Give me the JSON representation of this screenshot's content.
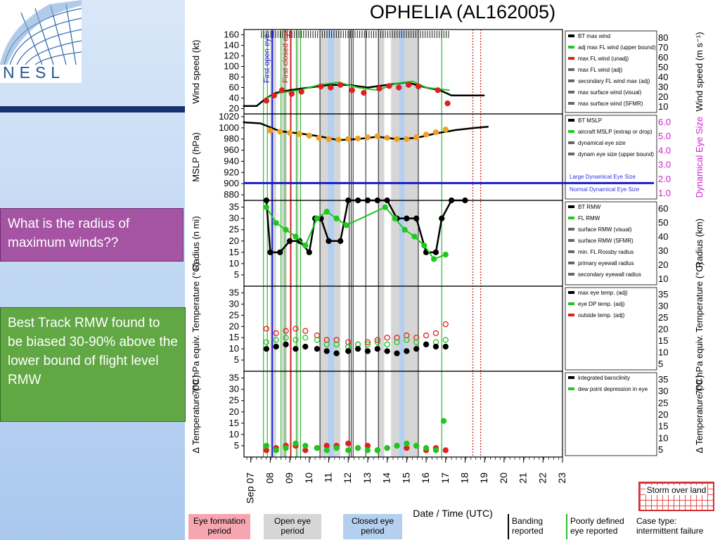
{
  "logo": {
    "text": "NESL"
  },
  "callouts": {
    "question": "What is the radius of maximum winds??",
    "answer": "Best Track RMW found to be biased 30-90% above the lower bound of flight level RMW"
  },
  "chart_data": {
    "type": "scatter",
    "title": "OPHELIA (AL162005)",
    "xlabel": "Date / Time (UTC)",
    "x_ticks": [
      "Sep 07",
      "08",
      "09",
      "10",
      "11",
      "12",
      "13",
      "14",
      "15",
      "16",
      "17",
      "18",
      "19",
      "20",
      "21",
      "22",
      "23"
    ],
    "xlim": [
      "Sep 07",
      "Sep 23"
    ],
    "panels": [
      {
        "name": "wind",
        "ylabel": "Wind speed (kt)",
        "ylabel_right": "Wind speed (m s⁻¹)",
        "ylim": [
          10,
          170
        ],
        "yticks": [
          "160",
          "140",
          "120",
          "100",
          "80",
          "60",
          "40",
          "20"
        ],
        "yticks_right": [
          "80",
          "70",
          "60",
          "50",
          "40",
          "30",
          "20",
          "10"
        ],
        "legend": [
          "BT max wind",
          "adj max FL wind (upper bound)",
          "max FL wind (unadj)",
          "max FL wind (adj)",
          "secondary FL wind max (adj)",
          "max surface wind (visual)",
          "max surface wind (SFMR)"
        ],
        "series": [
          {
            "name": "BT max wind",
            "x": [
              6.6,
              7.3,
              7.8,
              8.3,
              9,
              10,
              11,
              12,
              13,
              14,
              15,
              16,
              16.7,
              17.3,
              18,
              19
            ],
            "y": [
              25,
              25,
              40,
              50,
              55,
              60,
              65,
              65,
              60,
              65,
              70,
              60,
              55,
              45,
              45,
              45
            ]
          },
          {
            "name": "adj max FL wind (upper bound)",
            "x": [
              7.8,
              8.5,
              9.5,
              10.5,
              11.5,
              12.5,
              13.5,
              14.5,
              15.3,
              16,
              17.2
            ],
            "y": [
              40,
              50,
              55,
              65,
              70,
              60,
              55,
              68,
              72,
              60,
              55
            ]
          },
          {
            "name": "max FL wind (adj)",
            "x": [
              7.8,
              8.2,
              8.6,
              9.1,
              9.6,
              10.6,
              11.1,
              11.6,
              12.2,
              12.8,
              13.6,
              14.1,
              14.6,
              15.1,
              15.6,
              16.6,
              17.1
            ],
            "y": [
              35,
              45,
              55,
              48,
              52,
              62,
              60,
              65,
              55,
              50,
              58,
              63,
              60,
              65,
              62,
              55,
              30
            ]
          }
        ]
      },
      {
        "name": "mslp",
        "ylabel": "MSLP (hPa)",
        "ylabel_right": "Dynamical Eye Size",
        "ylim": [
          870,
          1025
        ],
        "yticks": [
          "1020",
          "1000",
          "980",
          "960",
          "940",
          "920",
          "900",
          "880"
        ],
        "yticks_right": [
          "6.0",
          "5.0",
          "4.0",
          "3.0",
          "2.0",
          "1.0"
        ],
        "legend": [
          "BT MSLP",
          "aircraft MSLP (extrap or drop)",
          "dynamical eye size",
          "dynam eye size (upper bound)"
        ],
        "annotations": [
          "Large Dynamical Eye Size",
          "Normal Dynamical Eye Size"
        ],
        "series": [
          {
            "name": "BT MSLP",
            "x": [
              6.6,
              7.5,
              8.5,
              9.5,
              10.5,
              11.5,
              12.5,
              13.5,
              14.5,
              15.5,
              16.5,
              17.5,
              18.5,
              19.2
            ],
            "y": [
              1010,
              1008,
              994,
              990,
              985,
              978,
              980,
              984,
              980,
              982,
              990,
              996,
              1000,
              1002
            ]
          },
          {
            "name": "aircraft MSLP (extrap or drop)",
            "x": [
              8,
              8.5,
              9,
              9.5,
              10,
              10.5,
              11,
              11.5,
              12,
              12.5,
              13,
              13.5,
              14,
              14.5,
              15,
              15.5,
              16,
              16.5,
              17
            ],
            "y": [
              995,
              993,
              991,
              989,
              986,
              982,
              980,
              979,
              980,
              981,
              983,
              985,
              982,
              980,
              980,
              983,
              988,
              992,
              997
            ]
          }
        ]
      },
      {
        "name": "rmw",
        "ylabel": "Radius (n mi)",
        "ylabel_right": "Radius (km)",
        "ylim": [
          0,
          38
        ],
        "yticks": [
          "35",
          "30",
          "25",
          "20",
          "15",
          "10",
          "5"
        ],
        "yticks_right": [
          "60",
          "50",
          "40",
          "30",
          "20",
          "10"
        ],
        "legend": [
          "BT RMW",
          "FL RMW",
          "surface RMW (visual)",
          "surface RMW (SFMR)",
          "min. FL Rossby radius",
          "primary eyewall radius",
          "secondary eyewall radius"
        ],
        "series": [
          {
            "name": "BT RMW",
            "x": [
              7.8,
              8,
              8.5,
              9,
              9.5,
              10,
              10.3,
              10.6,
              11,
              11.6,
              12,
              12.5,
              13,
              13.5,
              14,
              14.5,
              15,
              15.5,
              16,
              16.5,
              16.8,
              17.3,
              18
            ],
            "y": [
              38,
              15,
              15,
              20,
              20,
              15,
              30,
              30,
              20,
              20,
              38,
              38,
              38,
              38,
              38,
              30,
              30,
              30,
              15,
              15,
              30,
              38,
              38
            ]
          },
          {
            "name": "FL RMW",
            "x": [
              7.8,
              8.3,
              8.8,
              9.3,
              9.8,
              10.4,
              10.9,
              11.4,
              11.9,
              13.9,
              14.4,
              14.9,
              15.4,
              15.9,
              16.4,
              17
            ],
            "y": [
              35,
              28,
              25,
              22,
              18,
              30,
              33,
              30,
              27,
              35,
              30,
              25,
              22,
              18,
              12,
              14
            ]
          }
        ]
      },
      {
        "name": "eye_temp",
        "ylabel": "700 hPa equiv. Temperature (°C)",
        "ylabel_right": "700 hPa equiv. Temperature (°C)",
        "ylim": [
          0,
          38
        ],
        "yticks": [
          "35",
          "30",
          "25",
          "20",
          "15",
          "10",
          "5"
        ],
        "yticks_right": [
          "35",
          "30",
          "25",
          "20",
          "15",
          "10",
          "5"
        ],
        "legend": [
          "max eye temp. (adj)",
          "eye DP temp. (adj)",
          "outside temp. (adj)"
        ],
        "series": [
          {
            "name": "max eye temp. (adj)",
            "x": [
              7.8,
              8.3,
              8.8,
              9.3,
              9.8,
              10.4,
              10.9,
              11.4,
              12,
              12.5,
              13,
              13.5,
              14,
              14.5,
              15,
              15.5,
              16,
              16.5,
              17
            ],
            "y": [
              19,
              17,
              18,
              19,
              18,
              16,
              14,
              14,
              13,
              12,
              13,
              14,
              15,
              15,
              16,
              15,
              16,
              17,
              21
            ]
          },
          {
            "name": "eye DP temp. (adj)",
            "x": [
              7.8,
              8.3,
              8.8,
              9.3,
              9.8,
              10.4,
              10.9,
              11.4,
              12,
              12.5,
              13,
              13.5,
              14,
              14.5,
              15,
              15.5,
              16,
              16.5,
              17
            ],
            "y": [
              13,
              14,
              15,
              14,
              15,
              14,
              12,
              12,
              11,
              12,
              12,
              13,
              12,
              13,
              14,
              13,
              12,
              13,
              14
            ]
          },
          {
            "name": "outside temp. (adj)",
            "x": [
              7.8,
              8.3,
              8.8,
              9.3,
              9.8,
              10.4,
              10.9,
              11.4,
              12,
              12.5,
              13,
              13.5,
              14,
              14.5,
              15,
              15.5,
              16,
              16.5,
              17
            ],
            "y": [
              10,
              11,
              12,
              10,
              11,
              10,
              9,
              8,
              9,
              10,
              9,
              10,
              9,
              8,
              9,
              10,
              12,
              11,
              11
            ]
          }
        ]
      },
      {
        "name": "delta_temp",
        "ylabel": "Δ Temperature (°C)",
        "ylabel_right": "Δ Temperature (°C)",
        "ylim": [
          0,
          38
        ],
        "yticks": [
          "35",
          "30",
          "25",
          "20",
          "15",
          "10",
          "5"
        ],
        "yticks_right": [
          "35",
          "30",
          "25",
          "20",
          "15",
          "10",
          "5"
        ],
        "legend": [
          "integrated baroclinity",
          "dew point depression in eye"
        ],
        "series": [
          {
            "name": "integrated baroclinity",
            "x": [
              7.8,
              8.3,
              8.8,
              9.3,
              9.8,
              10.4,
              10.9,
              11.4,
              12,
              12.5,
              13,
              13.5,
              14,
              14.5,
              15,
              15.5,
              16,
              16.5,
              17
            ],
            "y": [
              3,
              4,
              5,
              5,
              3,
              4,
              5,
              5,
              6,
              4,
              5,
              3,
              4,
              5,
              4,
              5,
              3,
              4,
              3
            ]
          },
          {
            "name": "dew point depression in eye",
            "x": [
              7.8,
              8.3,
              8.8,
              9.3,
              9.8,
              10.4,
              10.9,
              11.4,
              12,
              12.5,
              13,
              13.5,
              14,
              14.5,
              15,
              15.5,
              16,
              16.5,
              16.9
            ],
            "y": [
              5,
              3,
              4,
              6,
              5,
              4,
              3,
              4,
              3,
              4,
              3,
              3,
              4,
              5,
              6,
              5,
              4,
              3,
              16
            ]
          }
        ]
      }
    ],
    "vlines": [
      {
        "label": "First open eye",
        "x": 8.1,
        "color": "#2222dd"
      },
      {
        "label": "First closed eye",
        "x": 9.05,
        "color": "#d42020"
      }
    ],
    "bottom_legend": [
      {
        "label": "Eye formation period",
        "color": "#f6a6b0"
      },
      {
        "label": "Open eye period",
        "color": "#d6d6d6"
      },
      {
        "label": "Closed eye period",
        "color": "#b4d0ee"
      },
      {
        "label": "Banding reported",
        "color": "#000000"
      },
      {
        "label": "Poorly defined eye reported",
        "color": "#34b834"
      },
      {
        "label": "Storm over land",
        "color": "#d23030"
      }
    ],
    "case_type": "Case type: intermittent failure"
  }
}
